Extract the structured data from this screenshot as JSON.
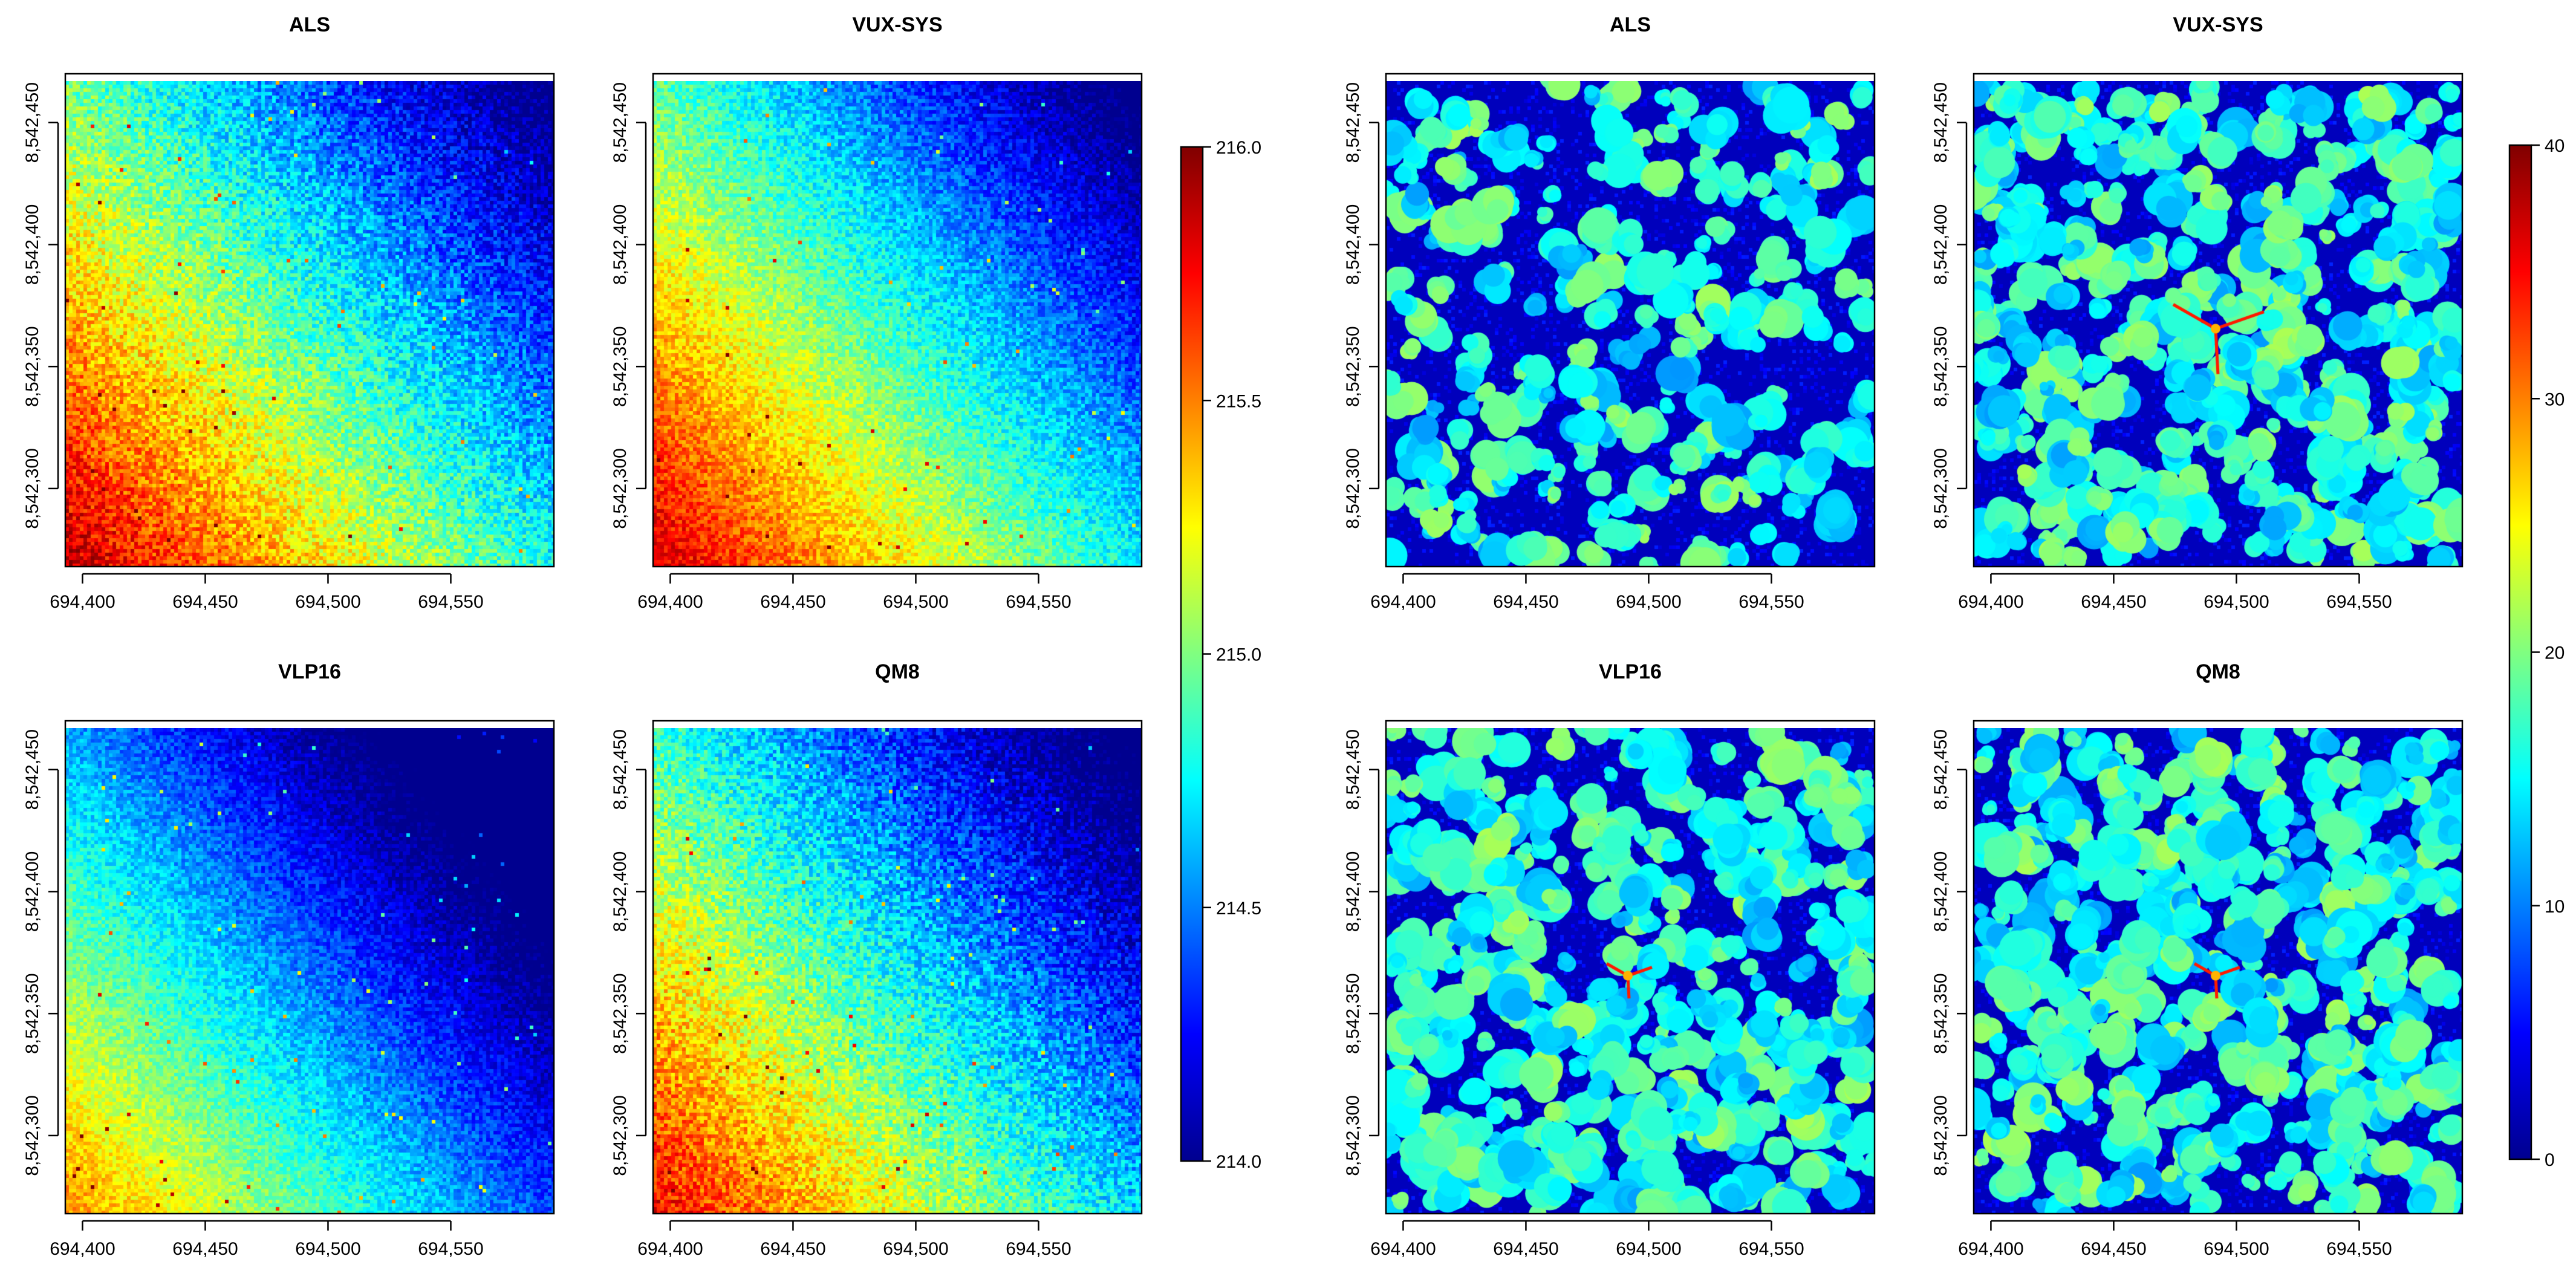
{
  "chart_data": [
    {
      "type": "heatmap",
      "title": "ALS",
      "group": "elevation",
      "variable": "elevation",
      "trend": "high in lower-left, decreasing toward upper-right",
      "value_range": [
        214.0,
        216.0
      ],
      "x_ticks": [
        "694,400",
        "694,450",
        "694,500",
        "694,550"
      ],
      "x_tick_values": [
        694400,
        694450,
        694500,
        694550
      ],
      "y_ticks": [
        "8,542,300",
        "8,542,350",
        "8,542,400",
        "8,542,450"
      ],
      "y_tick_values": [
        8542300,
        8542350,
        8542400,
        8542450
      ],
      "xlim": [
        694393,
        694592
      ],
      "ylim": [
        8542268,
        8542470
      ]
    },
    {
      "type": "heatmap",
      "title": "VUX-SYS",
      "group": "elevation",
      "variable": "elevation",
      "trend": "high in lower-left, decreasing toward upper-right",
      "value_range": [
        214.0,
        216.0
      ],
      "x_ticks": [
        "694,400",
        "694,450",
        "694,500",
        "694,550"
      ],
      "x_tick_values": [
        694400,
        694450,
        694500,
        694550
      ],
      "y_ticks": [
        "8,542,300",
        "8,542,350",
        "8,542,400",
        "8,542,450"
      ],
      "y_tick_values": [
        8542300,
        8542350,
        8542400,
        8542450
      ],
      "xlim": [
        694393,
        694592
      ],
      "ylim": [
        8542268,
        8542470
      ]
    },
    {
      "type": "heatmap",
      "title": "VLP16",
      "group": "elevation",
      "variable": "elevation",
      "trend": "high in lower-left, decreasing toward upper-right",
      "value_range": [
        214.0,
        216.0
      ],
      "x_ticks": [
        "694,400",
        "694,450",
        "694,500",
        "694,550"
      ],
      "x_tick_values": [
        694400,
        694450,
        694500,
        694550
      ],
      "y_ticks": [
        "8,542,300",
        "8,542,350",
        "8,542,400",
        "8,542,450"
      ],
      "y_tick_values": [
        8542300,
        8542350,
        8542400,
        8542450
      ],
      "xlim": [
        694393,
        694592
      ],
      "ylim": [
        8542268,
        8542470
      ]
    },
    {
      "type": "heatmap",
      "title": "QM8",
      "group": "elevation",
      "variable": "elevation",
      "trend": "high in lower-left, decreasing toward upper-right",
      "value_range": [
        214.0,
        216.0
      ],
      "x_ticks": [
        "694,400",
        "694,450",
        "694,500",
        "694,550"
      ],
      "x_tick_values": [
        694400,
        694450,
        694500,
        694550
      ],
      "y_ticks": [
        "8,542,300",
        "8,542,350",
        "8,542,400",
        "8,542,450"
      ],
      "y_tick_values": [
        8542300,
        8542350,
        8542400,
        8542450
      ],
      "xlim": [
        694393,
        694592
      ],
      "ylim": [
        8542268,
        8542470
      ]
    },
    {
      "type": "heatmap",
      "title": "ALS",
      "group": "canopy",
      "variable": "canopy height",
      "trend": "scattered tree crowns on low background",
      "value_range": [
        0,
        40
      ],
      "x_ticks": [
        "694,400",
        "694,450",
        "694,500",
        "694,550"
      ],
      "x_tick_values": [
        694400,
        694450,
        694500,
        694550
      ],
      "y_ticks": [
        "8,542,300",
        "8,542,350",
        "8,542,400",
        "8,542,450"
      ],
      "y_tick_values": [
        8542300,
        8542350,
        8542400,
        8542450
      ],
      "xlim": [
        694393,
        694592
      ],
      "ylim": [
        8542268,
        8542470
      ]
    },
    {
      "type": "heatmap",
      "title": "VUX-SYS",
      "group": "canopy",
      "variable": "canopy height",
      "trend": "dense tree crowns; tall structure near center",
      "value_range": [
        0,
        40
      ],
      "x_ticks": [
        "694,400",
        "694,450",
        "694,500",
        "694,550"
      ],
      "x_tick_values": [
        694400,
        694450,
        694500,
        694550
      ],
      "y_ticks": [
        "8,542,300",
        "8,542,350",
        "8,542,400",
        "8,542,450"
      ],
      "y_tick_values": [
        8542300,
        8542350,
        8542400,
        8542450
      ],
      "xlim": [
        694393,
        694592
      ],
      "ylim": [
        8542268,
        8542470
      ]
    },
    {
      "type": "heatmap",
      "title": "VLP16",
      "group": "canopy",
      "variable": "canopy height",
      "trend": "dense tree crowns; tall structure near center",
      "value_range": [
        0,
        40
      ],
      "x_ticks": [
        "694,400",
        "694,450",
        "694,500",
        "694,550"
      ],
      "x_tick_values": [
        694400,
        694450,
        694500,
        694550
      ],
      "y_ticks": [
        "8,542,300",
        "8,542,350",
        "8,542,400",
        "8,542,450"
      ],
      "y_tick_values": [
        8542300,
        8542350,
        8542400,
        8542450
      ],
      "xlim": [
        694393,
        694592
      ],
      "ylim": [
        8542268,
        8542470
      ]
    },
    {
      "type": "heatmap",
      "title": "QM8",
      "group": "canopy",
      "variable": "canopy height",
      "trend": "dense tree crowns; tall structure near center",
      "value_range": [
        0,
        40
      ],
      "x_ticks": [
        "694,400",
        "694,450",
        "694,500",
        "694,550"
      ],
      "x_tick_values": [
        694400,
        694450,
        694500,
        694550
      ],
      "y_ticks": [
        "8,542,300",
        "8,542,350",
        "8,542,400",
        "8,542,450"
      ],
      "y_tick_values": [
        8542300,
        8542350,
        8542400,
        8542450
      ],
      "xlim": [
        694393,
        694592
      ],
      "ylim": [
        8542268,
        8542470
      ]
    }
  ],
  "colorbars": [
    {
      "group": "elevation",
      "ticks": [
        "214.0",
        "214.5",
        "215.0",
        "215.5",
        "216.0"
      ],
      "tick_values": [
        214.0,
        214.5,
        215.0,
        215.5,
        216.0
      ],
      "range": [
        214.0,
        216.0
      ]
    },
    {
      "group": "canopy",
      "ticks": [
        "0",
        "10",
        "20",
        "30",
        "40"
      ],
      "tick_values": [
        0,
        10,
        20,
        30,
        40
      ],
      "range": [
        0,
        40
      ]
    }
  ],
  "colors": {
    "colormap": [
      "#00008f",
      "#0000ff",
      "#0080ff",
      "#00ffff",
      "#80ff80",
      "#ffff00",
      "#ff8000",
      "#ff0000",
      "#800000"
    ],
    "background": "#ffffff",
    "axis": "#000000"
  }
}
